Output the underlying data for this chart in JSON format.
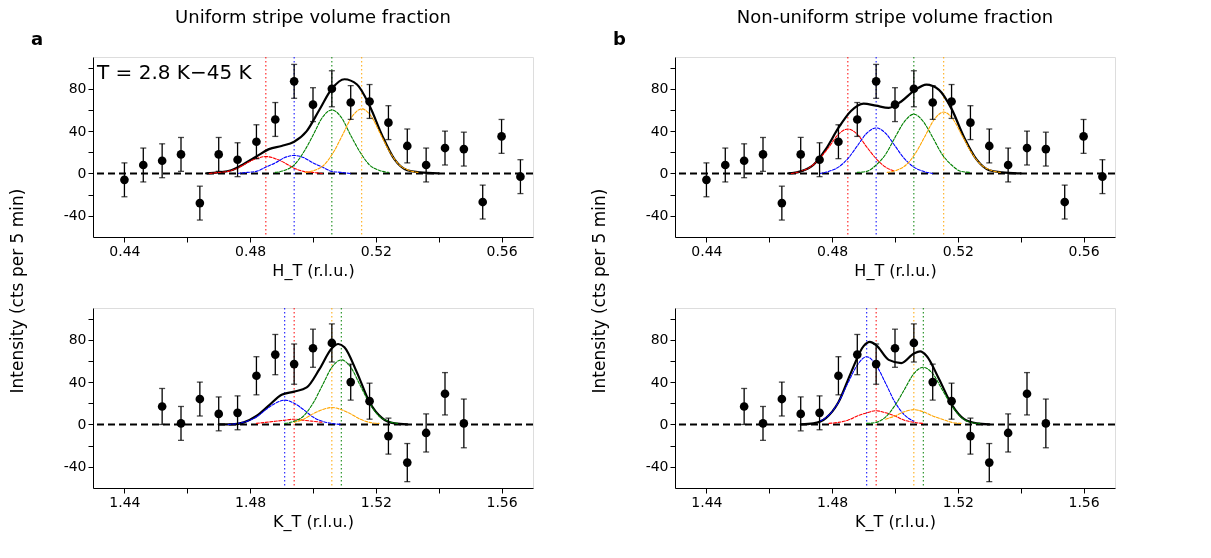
{
  "chart_data": [
    {
      "type": "scatter",
      "title": "Uniform stripe volume fraction",
      "xlabel": "H_T (r.l.u.)",
      "ylabel": "Intensity (cts per 5 min)",
      "annotations": [
        "a",
        "T = 2.8 K−45 K"
      ],
      "xlim": [
        0.43,
        0.57
      ],
      "xticks": [
        0.44,
        {
          "value": 0.46,
          "label": null
        },
        0.48,
        {
          "value": 0.5,
          "label": null
        },
        0.52,
        {
          "value": 0.54,
          "label": null
        },
        0.56
      ],
      "ylim": [
        -60,
        110
      ],
      "yticks": [
        -40,
        {
          "value": -20,
          "label": null
        },
        0,
        {
          "value": 20,
          "label": null
        },
        40,
        {
          "value": 60,
          "label": null
        },
        80,
        {
          "value": 100,
          "label": null
        }
      ],
      "ref_lines": [
        {
          "axis": "x",
          "value": 0.485,
          "color": "#ff0000",
          "line_style": "dotted"
        },
        {
          "axis": "x",
          "value": 0.494,
          "color": "#0000ff",
          "line_style": "dotted"
        },
        {
          "axis": "x",
          "value": 0.506,
          "color": "#008000",
          "line_style": "dotted"
        },
        {
          "axis": "x",
          "value": 0.5155,
          "color": "#ffa500",
          "line_style": "dotted"
        },
        {
          "axis": "y",
          "value": 0,
          "color": "#000000",
          "line_style": "dashed"
        }
      ],
      "series": [
        {
          "type": "line",
          "color": "#ff0000",
          "line_style": "dashed",
          "x": [
            0.467,
            0.47,
            0.473,
            0.476,
            0.479,
            0.482,
            0.485,
            0.488,
            0.491,
            0.494,
            0.497,
            0.5,
            0.503
          ],
          "values": [
            0,
            1,
            2,
            5,
            10,
            14,
            16,
            14,
            10,
            5,
            2,
            1,
            0
          ]
        },
        {
          "type": "line",
          "color": "#0000ff",
          "line_style": "dashed",
          "x": [
            0.476,
            0.479,
            0.482,
            0.485,
            0.488,
            0.491,
            0.494,
            0.497,
            0.5,
            0.503,
            0.506,
            0.509,
            0.512
          ],
          "values": [
            0,
            1,
            2,
            6,
            10,
            15,
            17,
            15,
            10,
            6,
            2,
            1,
            0
          ]
        },
        {
          "type": "line",
          "color": "#008000",
          "line_style": "dashed",
          "x": [
            0.488,
            0.491,
            0.494,
            0.497,
            0.5,
            0.503,
            0.506,
            0.509,
            0.512,
            0.515,
            0.518,
            0.521,
            0.524
          ],
          "values": [
            1,
            3,
            8,
            20,
            36,
            53,
            60,
            53,
            36,
            20,
            8,
            3,
            1
          ]
        },
        {
          "type": "line",
          "color": "#ffa500",
          "line_style": "dashed",
          "x": [
            0.4975,
            0.5005,
            0.5035,
            0.5065,
            0.5095,
            0.5125,
            0.5155,
            0.5185,
            0.5215,
            0.5245,
            0.5275,
            0.5305,
            0.5335
          ],
          "values": [
            1,
            3,
            8,
            20,
            37,
            54,
            61,
            54,
            37,
            20,
            8,
            3,
            1
          ]
        },
        {
          "type": "line",
          "color": "#000000",
          "line_style": "solid",
          "x": [
            0.466,
            0.47,
            0.474,
            0.478,
            0.482,
            0.486,
            0.49,
            0.494,
            0.498,
            0.502,
            0.506,
            0.51,
            0.514,
            0.518,
            0.522,
            0.526,
            0.53,
            0.534,
            0.54
          ],
          "values": [
            0,
            1,
            3,
            9,
            16,
            23,
            26,
            30,
            40,
            60,
            80,
            89,
            84,
            64,
            36,
            13,
            3,
            1,
            0
          ]
        },
        {
          "color": "#000000",
          "marker": "circle",
          "x": [
            0.44,
            0.446,
            0.452,
            0.458,
            0.464,
            0.47,
            0.476,
            0.482,
            0.488,
            0.494,
            0.5,
            0.506,
            0.512,
            0.518,
            0.524,
            0.53,
            0.536,
            0.542,
            0.548,
            0.554,
            0.56,
            0.566
          ],
          "values": [
            -6,
            8,
            12,
            18,
            -28,
            18,
            13,
            30,
            51,
            87,
            65,
            80,
            67,
            68,
            48,
            26,
            8,
            24,
            23,
            -27,
            35,
            -3
          ],
          "errors": [
            16,
            16,
            16,
            16,
            16,
            16,
            16,
            16,
            16,
            16,
            16,
            17,
            16,
            16,
            16,
            16,
            16,
            16,
            16,
            16,
            16,
            16
          ]
        }
      ]
    },
    {
      "type": "scatter",
      "title": "Non-uniform stripe volume fraction",
      "xlabel": "H_T (r.l.u.)",
      "ylabel": "Intensity (cts per 5 min)",
      "annotations": [
        "b"
      ],
      "xlim": [
        0.43,
        0.57
      ],
      "xticks": [
        0.44,
        {
          "value": 0.46,
          "label": null
        },
        0.48,
        {
          "value": 0.5,
          "label": null
        },
        0.52,
        {
          "value": 0.54,
          "label": null
        },
        0.56
      ],
      "ylim": [
        -60,
        110
      ],
      "yticks": [
        -40,
        {
          "value": -20,
          "label": null
        },
        0,
        {
          "value": 20,
          "label": null
        },
        40,
        {
          "value": 60,
          "label": null
        },
        80,
        {
          "value": 100,
          "label": null
        }
      ],
      "ref_lines": [
        {
          "axis": "x",
          "value": 0.485,
          "color": "#ff0000",
          "line_style": "dotted"
        },
        {
          "axis": "x",
          "value": 0.494,
          "color": "#0000ff",
          "line_style": "dotted"
        },
        {
          "axis": "x",
          "value": 0.506,
          "color": "#008000",
          "line_style": "dotted"
        },
        {
          "axis": "x",
          "value": 0.5155,
          "color": "#ffa500",
          "line_style": "dotted"
        },
        {
          "axis": "y",
          "value": 0,
          "color": "#000000",
          "line_style": "dashed"
        }
      ],
      "series": [
        {
          "type": "line",
          "color": "#ff0000",
          "line_style": "dashed",
          "x": [
            0.467,
            0.47,
            0.473,
            0.476,
            0.479,
            0.482,
            0.485,
            0.488,
            0.491,
            0.494,
            0.497,
            0.5
          ],
          "values": [
            0,
            2,
            6,
            14,
            25,
            37,
            42,
            37,
            25,
            14,
            6,
            2
          ]
        },
        {
          "type": "line",
          "color": "#0000ff",
          "line_style": "dashed",
          "x": [
            0.476,
            0.479,
            0.482,
            0.485,
            0.488,
            0.491,
            0.494,
            0.497,
            0.5,
            0.503,
            0.506,
            0.509,
            0.512
          ],
          "values": [
            0,
            2,
            6,
            14,
            26,
            38,
            43,
            38,
            26,
            14,
            6,
            2,
            0
          ]
        },
        {
          "type": "line",
          "color": "#008000",
          "line_style": "dashed",
          "x": [
            0.488,
            0.491,
            0.494,
            0.497,
            0.5,
            0.503,
            0.506,
            0.509,
            0.512,
            0.515,
            0.518,
            0.521,
            0.524
          ],
          "values": [
            1,
            2,
            8,
            18,
            34,
            49,
            56,
            49,
            34,
            18,
            8,
            2,
            1
          ]
        },
        {
          "type": "line",
          "color": "#ffa500",
          "line_style": "dashed",
          "x": [
            0.4975,
            0.5005,
            0.5035,
            0.5065,
            0.5095,
            0.5125,
            0.5155,
            0.5185,
            0.5215,
            0.5245,
            0.5275,
            0.5305,
            0.5335
          ],
          "values": [
            1,
            3,
            8,
            19,
            35,
            51,
            58,
            51,
            35,
            19,
            8,
            3,
            1
          ]
        },
        {
          "type": "line",
          "color": "#000000",
          "line_style": "solid",
          "x": [
            0.466,
            0.47,
            0.474,
            0.478,
            0.482,
            0.486,
            0.49,
            0.494,
            0.498,
            0.502,
            0.506,
            0.51,
            0.514,
            0.518,
            0.522,
            0.526,
            0.53,
            0.534,
            0.54
          ],
          "values": [
            0,
            2,
            8,
            23,
            43,
            59,
            66,
            64,
            62,
            68,
            78,
            84,
            79,
            61,
            34,
            13,
            3,
            1,
            0
          ]
        },
        {
          "color": "#000000",
          "marker": "circle",
          "x": [
            0.44,
            0.446,
            0.452,
            0.458,
            0.464,
            0.47,
            0.476,
            0.482,
            0.488,
            0.494,
            0.5,
            0.506,
            0.512,
            0.518,
            0.524,
            0.53,
            0.536,
            0.542,
            0.548,
            0.554,
            0.56,
            0.566
          ],
          "values": [
            -6,
            8,
            12,
            18,
            -28,
            18,
            13,
            30,
            51,
            87,
            65,
            80,
            67,
            68,
            48,
            26,
            8,
            24,
            23,
            -27,
            35,
            -3
          ],
          "errors": [
            16,
            16,
            16,
            16,
            16,
            16,
            16,
            16,
            16,
            16,
            16,
            17,
            16,
            16,
            16,
            16,
            16,
            16,
            16,
            16,
            16,
            16
          ]
        }
      ]
    },
    {
      "type": "scatter",
      "xlabel": "K_T (r.l.u.)",
      "xlim": [
        1.43,
        1.57
      ],
      "xticks": [
        1.44,
        {
          "value": 1.46,
          "label": null
        },
        1.48,
        {
          "value": 1.5,
          "label": null
        },
        1.52,
        {
          "value": 1.54,
          "label": null
        },
        1.56
      ],
      "ylim": [
        -60,
        110
      ],
      "yticks": [
        -40,
        {
          "value": -20,
          "label": null
        },
        0,
        {
          "value": 20,
          "label": null
        },
        40,
        {
          "value": 60,
          "label": null
        },
        80,
        {
          "value": 100,
          "label": null
        }
      ],
      "ref_lines": [
        {
          "axis": "x",
          "value": 1.491,
          "color": "#0000ff",
          "line_style": "dotted"
        },
        {
          "axis": "x",
          "value": 1.494,
          "color": "#ff0000",
          "line_style": "dotted"
        },
        {
          "axis": "x",
          "value": 1.506,
          "color": "#ffa500",
          "line_style": "dotted"
        },
        {
          "axis": "x",
          "value": 1.509,
          "color": "#008000",
          "line_style": "dotted"
        },
        {
          "axis": "y",
          "value": 0,
          "color": "#000000",
          "line_style": "dashed"
        }
      ],
      "series": [
        {
          "type": "line",
          "color": "#0000ff",
          "line_style": "dashed",
          "x": [
            1.473,
            1.476,
            1.479,
            1.482,
            1.485,
            1.488,
            1.491,
            1.494,
            1.497,
            1.5,
            1.503,
            1.506,
            1.509
          ],
          "values": [
            0,
            1,
            3,
            7,
            14,
            20,
            23,
            20,
            14,
            7,
            3,
            1,
            0
          ]
        },
        {
          "type": "line",
          "color": "#ff0000",
          "line_style": "dashed",
          "x": [
            1.482,
            1.485,
            1.488,
            1.491,
            1.494,
            1.497,
            1.5,
            1.503
          ],
          "values": [
            1,
            2,
            3,
            4,
            5,
            4,
            3,
            2
          ]
        },
        {
          "type": "line",
          "color": "#ffa500",
          "line_style": "dashed",
          "x": [
            1.494,
            1.497,
            1.5,
            1.503,
            1.506,
            1.509,
            1.512,
            1.515,
            1.518,
            1.521
          ],
          "values": [
            2,
            5,
            10,
            14,
            16,
            14,
            10,
            5,
            2,
            1
          ]
        },
        {
          "type": "line",
          "color": "#008000",
          "line_style": "dashed",
          "x": [
            1.491,
            1.494,
            1.497,
            1.5,
            1.503,
            1.506,
            1.509,
            1.512,
            1.515,
            1.518,
            1.521,
            1.524,
            1.527
          ],
          "values": [
            1,
            3,
            8,
            20,
            37,
            54,
            61,
            54,
            37,
            20,
            8,
            3,
            1
          ]
        },
        {
          "type": "line",
          "color": "#000000",
          "line_style": "solid",
          "x": [
            1.47,
            1.474,
            1.478,
            1.482,
            1.486,
            1.49,
            1.494,
            1.498,
            1.502,
            1.506,
            1.508,
            1.51,
            1.514,
            1.518,
            1.522,
            1.526,
            1.53
          ],
          "values": [
            0,
            0,
            2,
            8,
            18,
            28,
            31,
            35,
            52,
            72,
            76,
            73,
            49,
            21,
            6,
            1,
            0
          ]
        },
        {
          "color": "#000000",
          "marker": "circle",
          "x": [
            1.452,
            1.458,
            1.464,
            1.47,
            1.476,
            1.482,
            1.488,
            1.494,
            1.5,
            1.506,
            1.512,
            1.518,
            1.524,
            1.53,
            1.536,
            1.542,
            1.548
          ],
          "values": [
            17,
            1,
            24,
            10,
            11,
            46,
            66,
            57,
            72,
            77,
            40,
            22,
            -11,
            -36,
            -8,
            29,
            1
          ],
          "errors": [
            17,
            16,
            16,
            16,
            16,
            18,
            19,
            19,
            18,
            18,
            17,
            17,
            17,
            18,
            18,
            20,
            23
          ]
        }
      ]
    },
    {
      "type": "scatter",
      "xlabel": "K_T (r.l.u.)",
      "xlim": [
        1.43,
        1.57
      ],
      "xticks": [
        1.44,
        {
          "value": 1.46,
          "label": null
        },
        1.48,
        {
          "value": 1.5,
          "label": null
        },
        1.52,
        {
          "value": 1.54,
          "label": null
        },
        1.56
      ],
      "ylim": [
        -60,
        110
      ],
      "yticks": [
        -40,
        {
          "value": -20,
          "label": null
        },
        0,
        {
          "value": 20,
          "label": null
        },
        40,
        {
          "value": 60,
          "label": null
        },
        80,
        {
          "value": 100,
          "label": null
        }
      ],
      "ref_lines": [
        {
          "axis": "x",
          "value": 1.491,
          "color": "#0000ff",
          "line_style": "dotted"
        },
        {
          "axis": "x",
          "value": 1.494,
          "color": "#ff0000",
          "line_style": "dotted"
        },
        {
          "axis": "x",
          "value": 1.506,
          "color": "#ffa500",
          "line_style": "dotted"
        },
        {
          "axis": "x",
          "value": 1.509,
          "color": "#008000",
          "line_style": "dotted"
        },
        {
          "axis": "y",
          "value": 0,
          "color": "#000000",
          "line_style": "dashed"
        }
      ],
      "series": [
        {
          "type": "line",
          "color": "#0000ff",
          "line_style": "dashed",
          "x": [
            1.476,
            1.479,
            1.482,
            1.485,
            1.488,
            1.491,
            1.494,
            1.497,
            1.5,
            1.503,
            1.506
          ],
          "values": [
            3,
            9,
            21,
            39,
            56,
            64,
            56,
            39,
            21,
            9,
            3
          ]
        },
        {
          "type": "line",
          "color": "#ff0000",
          "line_style": "dashed",
          "x": [
            1.479,
            1.482,
            1.485,
            1.488,
            1.491,
            1.494,
            1.497,
            1.5,
            1.503,
            1.506,
            1.509
          ],
          "values": [
            1,
            2,
            4,
            8,
            11,
            13,
            11,
            8,
            4,
            2,
            1
          ]
        },
        {
          "type": "line",
          "color": "#ffa500",
          "line_style": "dashed",
          "x": [
            1.497,
            1.5,
            1.503,
            1.506,
            1.509,
            1.512,
            1.515,
            1.518,
            1.521
          ],
          "values": [
            5,
            8,
            12,
            14,
            12,
            8,
            5,
            2,
            1
          ]
        },
        {
          "type": "line",
          "color": "#008000",
          "line_style": "dashed",
          "x": [
            1.491,
            1.494,
            1.497,
            1.5,
            1.503,
            1.506,
            1.509,
            1.512,
            1.515,
            1.518,
            1.521,
            1.524,
            1.527
          ],
          "values": [
            1,
            2,
            7,
            18,
            33,
            48,
            54,
            48,
            33,
            18,
            7,
            2,
            1
          ]
        },
        {
          "type": "line",
          "color": "#000000",
          "line_style": "solid",
          "x": [
            1.47,
            1.474,
            1.478,
            1.482,
            1.486,
            1.49,
            1.492,
            1.494,
            1.498,
            1.502,
            1.506,
            1.508,
            1.51,
            1.514,
            1.518,
            1.522,
            1.526,
            1.53
          ],
          "values": [
            0,
            1,
            6,
            21,
            49,
            74,
            78,
            75,
            61,
            58,
            67,
            69,
            65,
            43,
            19,
            5,
            1,
            0
          ]
        },
        {
          "color": "#000000",
          "marker": "circle",
          "x": [
            1.452,
            1.458,
            1.464,
            1.47,
            1.476,
            1.482,
            1.488,
            1.494,
            1.5,
            1.506,
            1.512,
            1.518,
            1.524,
            1.53,
            1.536,
            1.542,
            1.548
          ],
          "values": [
            17,
            1,
            24,
            10,
            11,
            46,
            66,
            57,
            72,
            77,
            40,
            22,
            -11,
            -36,
            -8,
            29,
            1
          ],
          "errors": [
            17,
            16,
            16,
            16,
            16,
            18,
            19,
            19,
            18,
            18,
            17,
            17,
            17,
            18,
            18,
            20,
            23
          ]
        }
      ]
    }
  ]
}
